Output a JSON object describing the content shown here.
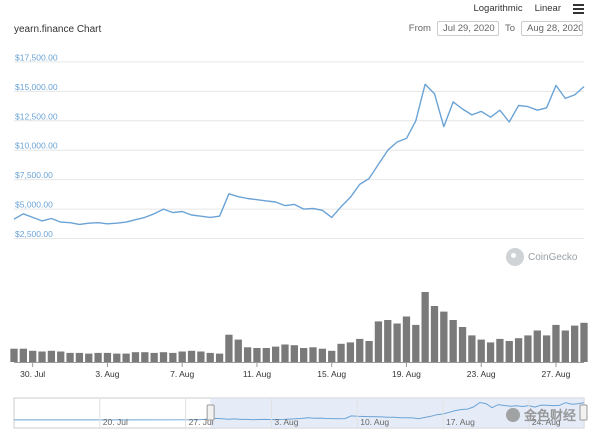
{
  "header": {
    "title": "yearn.finance Chart",
    "scale_options": [
      "Logarithmic",
      "Linear"
    ],
    "from_label": "From",
    "to_label": "To",
    "from_date": "Jul 29, 2020",
    "to_date": "Aug 28, 2020"
  },
  "colors": {
    "price_line": "#6ba3d6",
    "volume_bar": "#7a7a7a",
    "gridline": "#e6e6e6",
    "navigator_selection": "#dbe4f3"
  },
  "brand": {
    "coingecko_label": "CoinGecko",
    "watermark_text": "金色财经"
  },
  "chart_data": {
    "type": "line",
    "title": "yearn.finance Chart",
    "ylim": [
      0,
      18000
    ],
    "ytick_values": [
      2500,
      5000,
      7500,
      10000,
      12500,
      15000,
      17500
    ],
    "ytick_labels": [
      "$2,500.00",
      "$5,000.00",
      "$7,500.00",
      "$10,000.00",
      "$12,500.00",
      "$15,000.00",
      "$17,500.00"
    ],
    "xtick_labels": [
      "30. Jul",
      "3. Aug",
      "7. Aug",
      "11. Aug",
      "15. Aug",
      "19. Aug",
      "23. Aug",
      "27. Aug"
    ],
    "xtick_days": [
      1,
      5,
      9,
      13,
      17,
      21,
      25,
      29
    ],
    "x_range_days": [
      0,
      30.5
    ],
    "grid": true,
    "price_series": {
      "name": "Price",
      "x_days": [
        0,
        0.5,
        1,
        1.5,
        2,
        2.5,
        3,
        3.5,
        4,
        4.5,
        5,
        5.5,
        6,
        6.5,
        7,
        7.5,
        8,
        8.5,
        9,
        9.5,
        10,
        10.5,
        11,
        11.5,
        12,
        12.5,
        13,
        13.5,
        14,
        14.5,
        15,
        15.5,
        16,
        16.5,
        17,
        17.5,
        18,
        18.5,
        19,
        19.5,
        20,
        20.5,
        21,
        21.5,
        22,
        22.5,
        23,
        23.5,
        24,
        24.5,
        25,
        25.5,
        26,
        26.5,
        27,
        27.5,
        28,
        28.5,
        29,
        29.5,
        30,
        30.5
      ],
      "values": [
        4150,
        4600,
        4300,
        4000,
        4200,
        3900,
        3850,
        3700,
        3800,
        3850,
        3750,
        3800,
        3900,
        4100,
        4300,
        4600,
        5000,
        4700,
        4800,
        4500,
        4400,
        4300,
        4400,
        6300,
        6050,
        5900,
        5800,
        5700,
        5600,
        5300,
        5400,
        5000,
        5050,
        4900,
        4300,
        5200,
        6000,
        7100,
        7600,
        8800,
        10000,
        10700,
        11000,
        12500,
        15600,
        14800,
        12000,
        14100,
        13500,
        13000,
        13300,
        12800,
        13400,
        12400,
        13800,
        13700,
        13400,
        13600,
        15500,
        14400,
        14700,
        15400
      ]
    },
    "volume_series": {
      "name": "Volume",
      "values": [
        1.9,
        1.9,
        1.6,
        1.5,
        1.6,
        1.5,
        1.3,
        1.3,
        1.2,
        1.3,
        1.3,
        1.2,
        1.2,
        1.4,
        1.4,
        1.3,
        1.4,
        1.3,
        1.5,
        1.6,
        1.5,
        1.3,
        1.2,
        3.9,
        3.2,
        2.1,
        2.0,
        2.0,
        2.2,
        2.5,
        2.4,
        2.0,
        2.1,
        1.9,
        1.6,
        2.6,
        2.8,
        3.3,
        3.0,
        5.8,
        6.0,
        5.5,
        6.5,
        5.3,
        10.0,
        8.0,
        7.2,
        6.0,
        5.0,
        3.8,
        3.2,
        2.8,
        3.3,
        3.0,
        3.4,
        3.8,
        4.5,
        3.8,
        5.3,
        4.5,
        5.2,
        5.6
      ]
    },
    "navigator": {
      "xtick_labels": [
        "20. Jul",
        "27. Jul",
        "3. Aug",
        "10. Aug",
        "17. Aug",
        "24. Aug"
      ],
      "xtick_days": [
        -9,
        -2,
        5,
        12,
        19,
        26
      ],
      "x_range_days": [
        -16,
        30.5
      ],
      "selection_days": [
        0,
        30.5
      ]
    }
  }
}
